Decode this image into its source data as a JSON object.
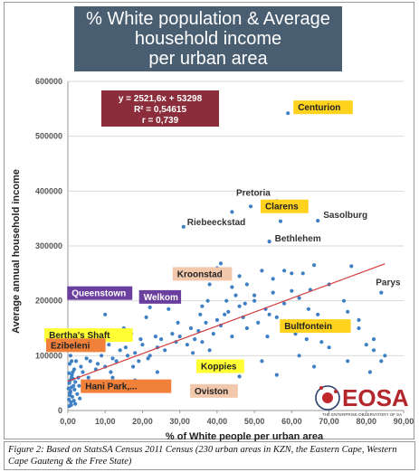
{
  "title_lines": [
    "% White population & Average",
    "household income",
    "per urban area"
  ],
  "caption": "Figure 2:  Based on StatsSA Census 2011 Census (230 urban areas in KZN, the Eastern Cape, Western Cape Gauteng & the Free State)",
  "logo": {
    "text": "EOSA",
    "tagline": "THE ENTERPRISE OBSERVATORY OF SA"
  },
  "chart_data": {
    "type": "scatter",
    "xlabel": "% of White people per urban area",
    "ylabel": "Average annual household income",
    "xlim": [
      0,
      90
    ],
    "ylim": [
      0,
      600000
    ],
    "xticks": [
      "0,00",
      "10,00",
      "20,00",
      "30,00",
      "40,00",
      "50,00",
      "60,00",
      "70,00",
      "80,00",
      "90,00"
    ],
    "yticks": [
      "0",
      "100000",
      "200000",
      "300000",
      "400000",
      "500000",
      "600000"
    ],
    "trendline": {
      "slope": 2521.6,
      "intercept": 53298,
      "x_range": [
        0,
        85
      ]
    },
    "equation_lines": [
      "y = 2521,6x + 53298",
      "R² = 0,54615",
      "r = 0,739"
    ],
    "points": [
      [
        0.3,
        20000
      ],
      [
        0.5,
        28000
      ],
      [
        0.7,
        35000
      ],
      [
        0.9,
        42000
      ],
      [
        0.4,
        50000
      ],
      [
        0.6,
        55000
      ],
      [
        1.0,
        60000
      ],
      [
        1.2,
        25000
      ],
      [
        0.8,
        15000
      ],
      [
        1.5,
        45000
      ],
      [
        1.3,
        70000
      ],
      [
        0.5,
        85000
      ],
      [
        1.8,
        38000
      ],
      [
        2.0,
        52000
      ],
      [
        2.5,
        30000
      ],
      [
        0.9,
        10000
      ],
      [
        1.1,
        65000
      ],
      [
        1.7,
        75000
      ],
      [
        2.2,
        90000
      ],
      [
        3.0,
        45000
      ],
      [
        0.2,
        40000
      ],
      [
        0.6,
        32000
      ],
      [
        1.4,
        58000
      ],
      [
        0.3,
        68000
      ],
      [
        2.8,
        60000
      ],
      [
        3.5,
        80000
      ],
      [
        4.0,
        70000
      ],
      [
        5.0,
        95000
      ],
      [
        6.0,
        90000
      ],
      [
        7.0,
        110000
      ],
      [
        8.0,
        85000
      ],
      [
        9.0,
        100000
      ],
      [
        10.0,
        80000
      ],
      [
        11.0,
        120000
      ],
      [
        12.0,
        95000
      ],
      [
        13.0,
        90000
      ],
      [
        14.0,
        110000
      ],
      [
        16.0,
        100000
      ],
      [
        18.0,
        105000
      ],
      [
        19.0,
        90000
      ],
      [
        20.0,
        120000
      ],
      [
        22.0,
        100000
      ],
      [
        24.0,
        115000
      ],
      [
        25.0,
        130000
      ],
      [
        26.0,
        110000
      ],
      [
        28.0,
        140000
      ],
      [
        29.0,
        125000
      ],
      [
        30.0,
        135000
      ],
      [
        32.0,
        120000
      ],
      [
        33.0,
        150000
      ],
      [
        34.0,
        130000
      ],
      [
        35.0,
        145000
      ],
      [
        36.0,
        125000
      ],
      [
        37.0,
        160000
      ],
      [
        38.0,
        110000
      ],
      [
        39.0,
        140000
      ],
      [
        40.0,
        165000
      ],
      [
        41.0,
        155000
      ],
      [
        42.0,
        175000
      ],
      [
        43.0,
        180000
      ],
      [
        44.0,
        135000
      ],
      [
        45.0,
        210000
      ],
      [
        46.0,
        190000
      ],
      [
        47.0,
        170000
      ],
      [
        48.0,
        230000
      ],
      [
        50.0,
        200000
      ],
      [
        51.0,
        160000
      ],
      [
        53.0,
        185000
      ],
      [
        55.0,
        215000
      ],
      [
        56.0,
        170000
      ],
      [
        58.0,
        195000
      ],
      [
        60.0,
        250000
      ],
      [
        62.0,
        205000
      ],
      [
        64.0,
        130000
      ],
      [
        65.0,
        220000
      ],
      [
        67.0,
        175000
      ],
      [
        70.0,
        160000
      ],
      [
        72.0,
        145000
      ],
      [
        75.0,
        180000
      ],
      [
        78.0,
        150000
      ],
      [
        80.0,
        120000
      ],
      [
        82.0,
        130000
      ],
      [
        84.0,
        90000
      ],
      [
        85.0,
        100000
      ],
      [
        62.0,
        100000
      ],
      [
        75.0,
        90000
      ],
      [
        17.0,
        140000
      ],
      [
        27.0,
        185000
      ],
      [
        15.0,
        150000
      ],
      [
        21.0,
        170000
      ],
      [
        31.0,
        255000
      ],
      [
        34.0,
        240000
      ],
      [
        38.0,
        230000
      ],
      [
        40.0,
        260000
      ],
      [
        41.0,
        268000
      ],
      [
        46.0,
        245000
      ],
      [
        50.0,
        210000
      ],
      [
        52.0,
        255000
      ],
      [
        55.0,
        240000
      ],
      [
        58.0,
        255000
      ],
      [
        60.0,
        218000
      ],
      [
        63.0,
        250000
      ],
      [
        66.0,
        265000
      ],
      [
        70.0,
        230000
      ],
      [
        76.0,
        263000
      ],
      [
        81.0,
        70000
      ],
      [
        54.0,
        175000
      ],
      [
        48.0,
        150000
      ],
      [
        44.0,
        225000
      ],
      [
        36.0,
        190000
      ],
      [
        59.0,
        542000
      ],
      [
        49.0,
        372000
      ],
      [
        57.0,
        345000
      ],
      [
        67.0,
        346000
      ],
      [
        54.0,
        308000
      ],
      [
        31.0,
        335000
      ],
      [
        84.0,
        215000
      ],
      [
        44.0,
        362000
      ],
      [
        63.0,
        380000
      ],
      [
        56.0,
        382000
      ],
      [
        10.0,
        175000
      ],
      [
        16.0,
        220000
      ],
      [
        22.0,
        188000
      ],
      [
        28.0,
        205000
      ],
      [
        12.0,
        60000
      ],
      [
        14.0,
        45000
      ],
      [
        18.0,
        55000
      ],
      [
        24.0,
        70000
      ],
      [
        26.0,
        40000
      ],
      [
        39.0,
        30000
      ],
      [
        46.0,
        62000
      ],
      [
        52.0,
        90000
      ],
      [
        56.0,
        65000
      ],
      [
        66.0,
        80000
      ],
      [
        70.0,
        115000
      ],
      [
        74.0,
        200000
      ],
      [
        78.0,
        165000
      ],
      [
        82.0,
        110000
      ],
      [
        2.5,
        110000
      ],
      [
        4.5,
        130000
      ],
      [
        1.6,
        18000
      ],
      [
        0.4,
        8000
      ],
      [
        2.0,
        12000
      ],
      [
        3.2,
        22000
      ],
      [
        1.0,
        90000
      ],
      [
        0.7,
        100000
      ],
      [
        0.2,
        110000
      ],
      [
        1.5,
        120000
      ],
      [
        5.5,
        60000
      ],
      [
        6.5,
        40000
      ],
      [
        7.5,
        75000
      ],
      [
        8.5,
        120000
      ],
      [
        9.5,
        140000
      ],
      [
        11.5,
        70000
      ],
      [
        13.5,
        130000
      ],
      [
        15.5,
        115000
      ],
      [
        17.5,
        80000
      ],
      [
        19.5,
        130000
      ],
      [
        21.5,
        95000
      ],
      [
        23.5,
        135000
      ],
      [
        29.5,
        160000
      ],
      [
        33.5,
        105000
      ],
      [
        35.5,
        175000
      ],
      [
        37.5,
        200000
      ],
      [
        42.5,
        200000
      ],
      [
        47.5,
        195000
      ],
      [
        53.5,
        135000
      ],
      [
        61.0,
        140000
      ],
      [
        64.5,
        185000
      ],
      [
        68.0,
        125000
      ]
    ],
    "labels": [
      {
        "text": "Centurion",
        "x": 59,
        "y": 542000,
        "box": "#ffd21e",
        "fg": "#222"
      },
      {
        "text": "Pretoria",
        "x": 49,
        "y": 372000,
        "box": null,
        "fg": "#333"
      },
      {
        "text": "Clarens",
        "x": 57,
        "y": 345000,
        "box": "#ffd21e",
        "fg": "#222"
      },
      {
        "text": "Sasolburg",
        "x": 67,
        "y": 346000,
        "box": null,
        "fg": "#333"
      },
      {
        "text": "Riebeeckstad",
        "x": 31,
        "y": 335000,
        "box": null,
        "fg": "#333"
      },
      {
        "text": "Bethlehem",
        "x": 54,
        "y": 308000,
        "box": null,
        "fg": "#333"
      },
      {
        "text": "Kroonstad",
        "x": 31,
        "y": 240000,
        "box": "#f2c8ad",
        "fg": "#222"
      },
      {
        "text": "Queenstown",
        "x": 10,
        "y": 200000,
        "box": "#6b3f9e",
        "fg": "#ffffff"
      },
      {
        "text": "Welkom",
        "x": 22,
        "y": 198000,
        "box": "#6b3f9e",
        "fg": "#ffffff"
      },
      {
        "text": "Parys",
        "x": 84,
        "y": 215000,
        "box": null,
        "fg": "#333"
      },
      {
        "text": "Bertha's Shaft",
        "x": 1,
        "y": 135000,
        "box": "#ffff33",
        "fg": "#222"
      },
      {
        "text": "Bultfontein",
        "x": 59,
        "y": 135000,
        "box": "#ffd21e",
        "fg": "#222"
      },
      {
        "text": "Ezibeleni",
        "x": 0,
        "y": 100000,
        "box": "#f0803a",
        "fg": "#222"
      },
      {
        "text": "Koppies",
        "x": 41,
        "y": 70000,
        "box": "#ffff33",
        "fg": "#222"
      },
      {
        "text": "Hani Park,...",
        "x": 2,
        "y": 22000,
        "box": "#f0803a",
        "fg": "#222"
      },
      {
        "text": "Oviston",
        "x": 33,
        "y": 25000,
        "box": "#f2c8ad",
        "fg": "#222"
      }
    ]
  }
}
